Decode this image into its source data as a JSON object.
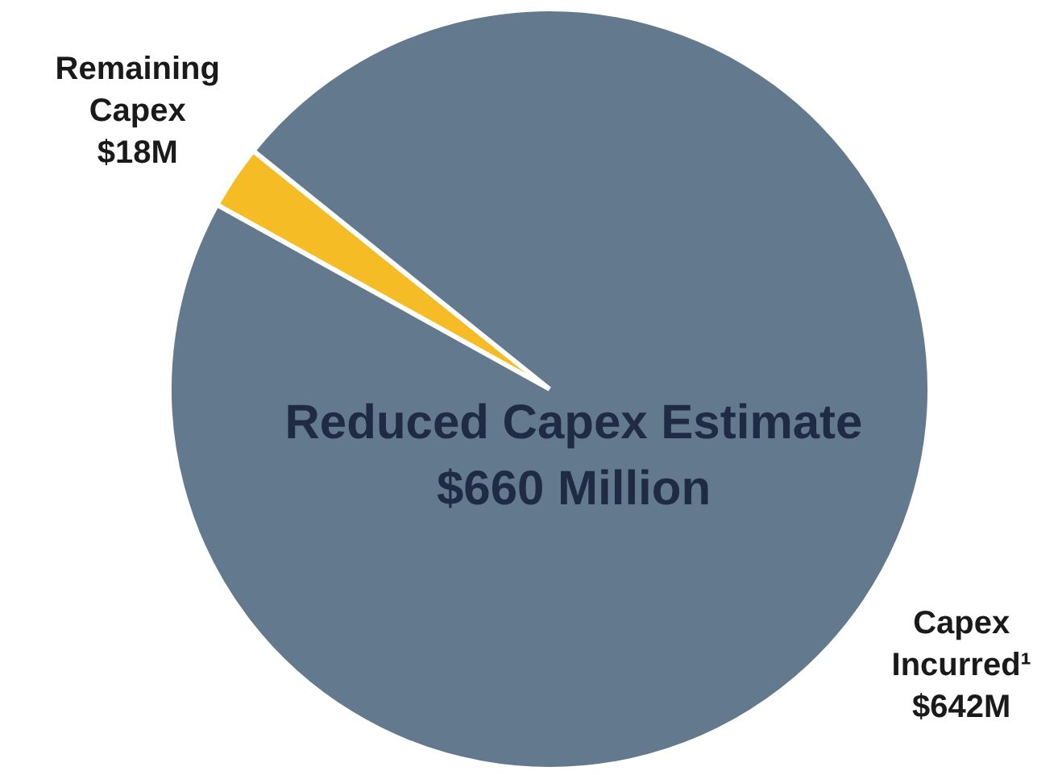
{
  "chart_data": {
    "type": "pie",
    "title": "Reduced Capex Estimate",
    "subtitle": "$660 Million",
    "categories": [
      "Remaining Capex",
      "Capex Incurred¹"
    ],
    "values": [
      18,
      642
    ],
    "colors": [
      "#f6bc25",
      "#637a8e"
    ],
    "value_labels": [
      "$18M",
      "$642M"
    ],
    "legend": false
  }
}
